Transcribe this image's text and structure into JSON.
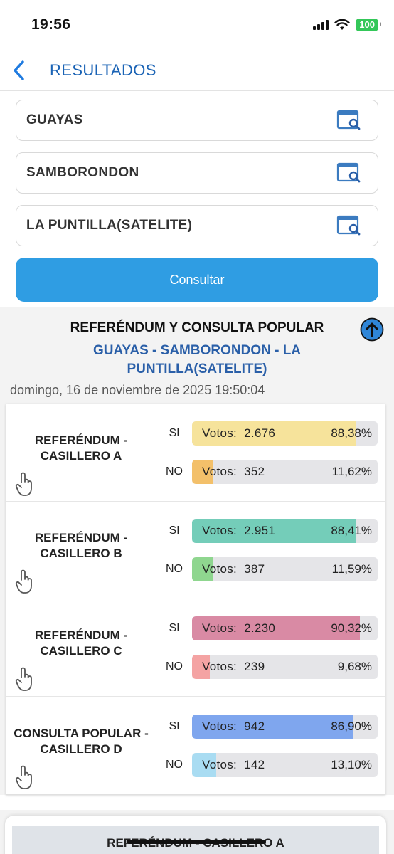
{
  "status": {
    "time": "19:56",
    "battery": "100"
  },
  "header": {
    "title": "RESULTADOS"
  },
  "filters": [
    {
      "value": "GUAYAS"
    },
    {
      "value": "SAMBORONDON"
    },
    {
      "value": "LA PUNTILLA(SATELITE)"
    }
  ],
  "consult_label": "Consultar",
  "results": {
    "title": "REFERÉNDUM Y CONSULTA POPULAR",
    "subtitle": "GUAYAS - SAMBORONDON - LA PUNTILLA(SATELITE)",
    "date": "domingo, 16 de noviembre de 2025 19:50:04",
    "rows": [
      {
        "label_line1": "REFERÉNDUM -",
        "label_line2": "CASILLERO A",
        "options": [
          {
            "option": "SI",
            "votes_label": "Votos:",
            "votes": "2.676",
            "percent": "88,38%",
            "fraction": 0.8838,
            "color": "#f6e39b"
          },
          {
            "option": "NO",
            "votes_label": "Votos:",
            "votes": "352",
            "percent": "11,62%",
            "fraction": 0.1162,
            "color": "#f3c06a"
          }
        ]
      },
      {
        "label_line1": "REFERÉNDUM -",
        "label_line2": "CASILLERO B",
        "options": [
          {
            "option": "SI",
            "votes_label": "Votos:",
            "votes": "2.951",
            "percent": "88,41%",
            "fraction": 0.8841,
            "color": "#74cdb9"
          },
          {
            "option": "NO",
            "votes_label": "Votos:",
            "votes": "387",
            "percent": "11,59%",
            "fraction": 0.1159,
            "color": "#8fd68f"
          }
        ]
      },
      {
        "label_line1": "REFERÉNDUM -",
        "label_line2": "CASILLERO C",
        "options": [
          {
            "option": "SI",
            "votes_label": "Votos:",
            "votes": "2.230",
            "percent": "90,32%",
            "fraction": 0.9032,
            "color": "#d98aa4"
          },
          {
            "option": "NO",
            "votes_label": "Votos:",
            "votes": "239",
            "percent": "9,68%",
            "fraction": 0.0968,
            "color": "#f4a3a3"
          }
        ]
      },
      {
        "label_line1": "CONSULTA POPULAR -",
        "label_line2": "CASILLERO D",
        "options": [
          {
            "option": "SI",
            "votes_label": "Votos:",
            "votes": "942",
            "percent": "86,90%",
            "fraction": 0.869,
            "color": "#7fa6ee"
          },
          {
            "option": "NO",
            "votes_label": "Votos:",
            "votes": "142",
            "percent": "13,10%",
            "fraction": 0.131,
            "color": "#a9dcf2"
          }
        ]
      }
    ]
  },
  "bottom_card": {
    "title": "REFERÉNDUM - CASILLERO A"
  }
}
